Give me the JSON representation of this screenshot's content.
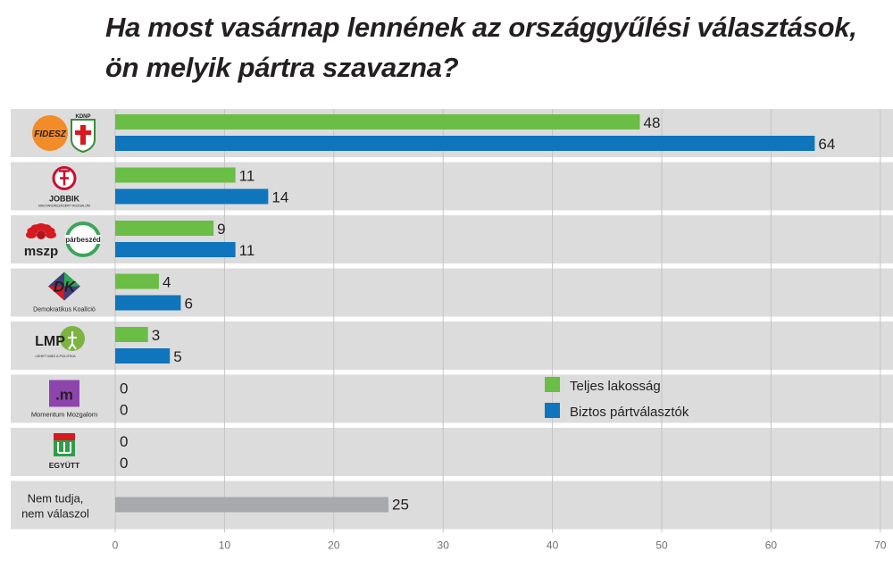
{
  "chart_data": {
    "type": "bar",
    "title": "Ha most vasárnap lennének az országgyűlési választások, ön melyik pártra szavazna?",
    "categories": [
      "Fidesz-KDNP",
      "Jobbik",
      "MSZP-Párbeszéd",
      "Demokratikus Koalíció",
      "LMP",
      "Momentum Mozgalom",
      "Együtt",
      "Nem tudja, nem válaszol"
    ],
    "series": [
      {
        "name": "Teljes lakosság",
        "color": "#6abd45",
        "values": [
          48,
          11,
          9,
          4,
          3,
          0,
          0,
          25
        ]
      },
      {
        "name": "Biztos pártválasztók",
        "color": "#0f75bc",
        "values": [
          64,
          14,
          11,
          6,
          5,
          0,
          0,
          null
        ]
      }
    ],
    "undecided_color": "#a7a9ac",
    "xlim": [
      0,
      70
    ],
    "xticks": [
      0,
      10,
      20,
      30,
      40,
      50,
      60,
      70
    ],
    "grid": true,
    "legend_position": "right",
    "logo_labels": {
      "fidesz": "FIDESZ",
      "kdnp": "KDNP",
      "jobbik": "JOBBIK",
      "jobbik_sub": "MAGYARORSZÁGÉRT MOZGALOM",
      "mszp": "mszp",
      "parbeszed": "párbeszéd",
      "dk_letters": "DK",
      "dk": "Demokratikus Koalíció",
      "lmp": "LMP",
      "lmp_sub": "LEHET MÁS A POLITIKA",
      "momentum_mark": ".m",
      "momentum": "Momentum Mozgalom",
      "egyutt": "EGYÜTT"
    },
    "undecided_label": [
      "Nem tudja,",
      "nem válaszol"
    ]
  }
}
